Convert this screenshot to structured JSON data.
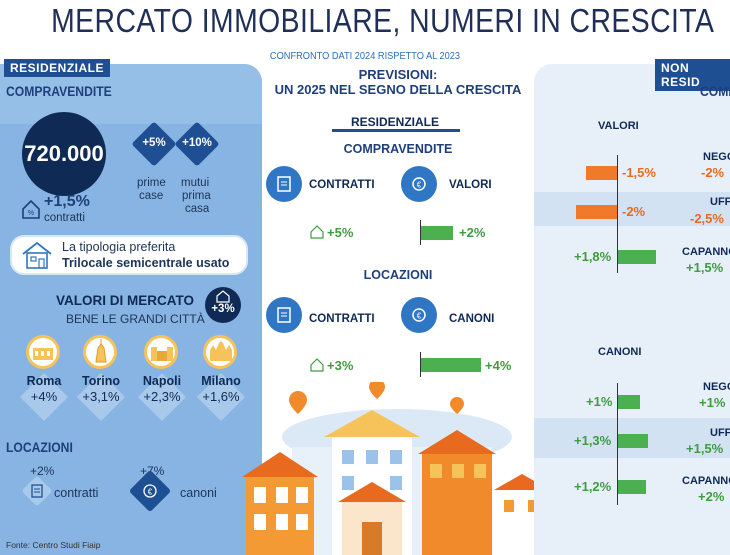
{
  "header": {
    "title": "MERCATO IMMOBILIARE, NUMERI IN CRESCITA",
    "subtitle": "CONFRONTO DATI 2024 RISPETTO AL 2023"
  },
  "residenziale_panel": {
    "tag": "RESIDENZIALE",
    "compravendite_label": "COMPRAVENDITE",
    "total": "720.000",
    "contratti_change": "+1,5%",
    "contratti_label": "contratti",
    "prime_case_value": "+5%",
    "prime_case_label_1": "prime",
    "prime_case_label_2": "case",
    "mutui_value": "+10%",
    "mutui_label_1": "mutui",
    "mutui_label_2": "prima",
    "mutui_label_3": "casa",
    "tipologia_label": "La tipologia preferita",
    "tipologia_value": "Trilocale semicentrale usato",
    "valori_label": "VALORI DI MERCATO",
    "valori_sub": "BENE LE GRANDI CITTÀ",
    "valori_change": "+3%",
    "cities": [
      {
        "name": "Roma",
        "value": "+4%"
      },
      {
        "name": "Torino",
        "value": "+3,1%"
      },
      {
        "name": "Napoli",
        "value": "+2,3%"
      },
      {
        "name": "Milano",
        "value": "+1,6%"
      }
    ],
    "locazioni_label": "LOCAZIONI",
    "locazioni_contratti_value": "+2%",
    "locazioni_contratti_label": "contratti",
    "locazioni_canoni_value": "+7%",
    "locazioni_canoni_label": "canoni"
  },
  "previsioni": {
    "title_1": "PREVISIONI:",
    "title_2": "UN 2025 NEL SEGNO DELLA CRESCITA",
    "residenziale": "RESIDENZIALE",
    "compravendite": "COMPRAVENDITE",
    "contratti_label": "CONTRATTI",
    "valori_label": "VALORI",
    "contratti_value": "+5%",
    "valori_value": "+2%",
    "locazioni": "LOCAZIONI",
    "loc_contratti_label": "CONTRATTI",
    "canoni_label": "CANONI",
    "loc_contratti_value": "+3%",
    "canoni_value": "+4%"
  },
  "non_residenziale": {
    "tag": "NON RESID",
    "compravendite": "COMP",
    "valori_header": "VALORI",
    "valori_rows": [
      {
        "value": "-1,5%",
        "label": "NEGO",
        "change": "-2%"
      },
      {
        "value": "-2%",
        "label": "UFF",
        "change": "-2,5%"
      },
      {
        "value": "+1,8%",
        "label": "CAPANNO",
        "change": "+1,5%"
      }
    ],
    "canoni_header": "CANONI",
    "canoni_rows": [
      {
        "value": "+1%",
        "label": "NEGO",
        "change": "+1%"
      },
      {
        "value": "+1,3%",
        "label": "UFF",
        "change": "+1,5%"
      },
      {
        "value": "+1,2%",
        "label": "CAPANNO",
        "change": "+2%"
      }
    ]
  },
  "footer": {
    "source": "Fonte: Centro Studi Fiaip"
  },
  "colors": {
    "navy": "#1f4f93",
    "green": "#4cb050",
    "orange": "#f0792a",
    "panel": "#87b4e2"
  }
}
